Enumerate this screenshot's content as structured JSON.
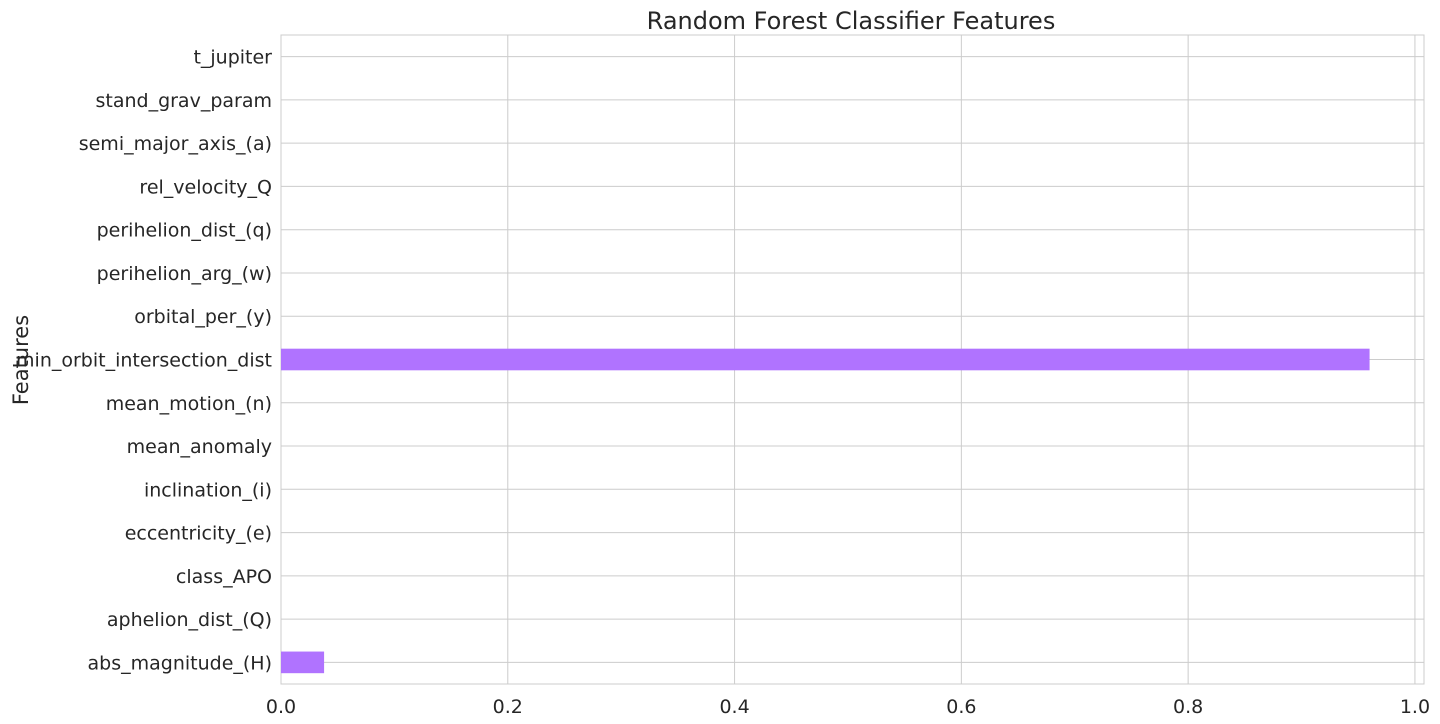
{
  "chart_data": {
    "type": "bar",
    "orientation": "horizontal",
    "title": "Random Forest Classifier Features",
    "xlabel": "",
    "ylabel": "Features",
    "categories": [
      "abs_magnitude_(H)",
      "aphelion_dist_(Q)",
      "class_APO",
      "eccentricity_(e)",
      "inclination_(i)",
      "mean_anomaly",
      "mean_motion_(n)",
      "min_orbit_intersection_dist",
      "orbital_per_(y)",
      "perihelion_arg_(w)",
      "perihelion_dist_(q)",
      "rel_velocity_Q",
      "semi_major_axis_(a)",
      "stand_grav_param",
      "t_jupiter"
    ],
    "values": [
      0.038,
      0,
      0,
      0,
      0,
      0,
      0,
      0.96,
      0,
      0,
      0,
      0,
      0,
      0,
      0
    ],
    "xlim": [
      0,
      1.008
    ],
    "xticks": [
      "0.0",
      "0.2",
      "0.4",
      "0.6",
      "0.8",
      "1.0"
    ],
    "xtick_values": [
      0,
      0.2,
      0.4,
      0.6,
      0.8,
      1.0
    ],
    "grid": true,
    "bar_color": "#b073ff",
    "grid_color": "#cccccc",
    "style": "seaborn-whitegrid"
  }
}
